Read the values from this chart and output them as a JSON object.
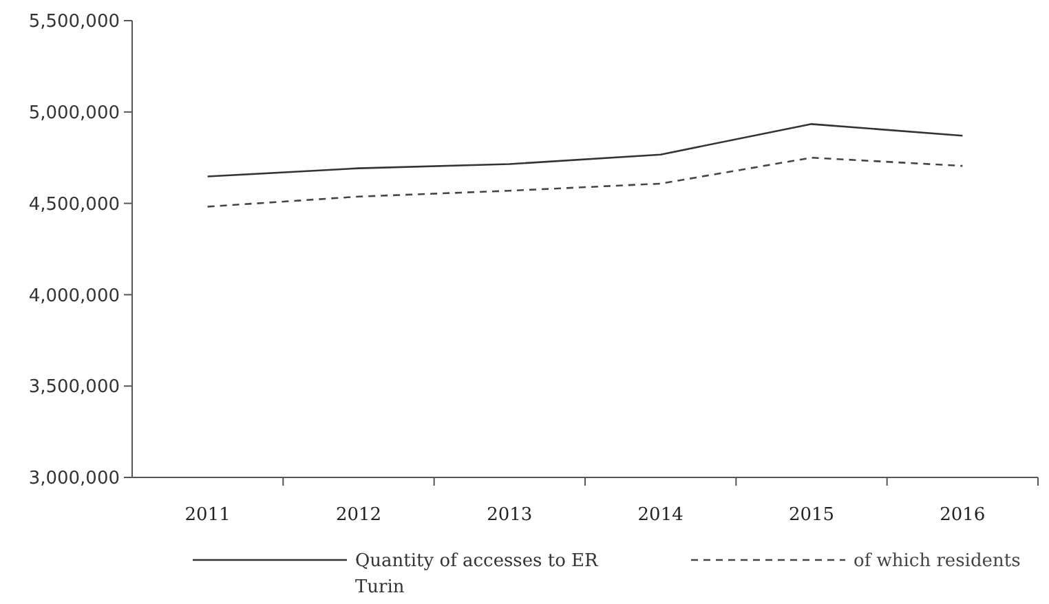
{
  "chart_data": {
    "type": "line",
    "categories": [
      "2011",
      "2012",
      "2013",
      "2014",
      "2015",
      "2016"
    ],
    "series": [
      {
        "name": "Quantity of accesses to ER Turin",
        "color": "#333333",
        "line_style": "solid",
        "values": [
          4647000,
          4692000,
          4715000,
          4767000,
          4934000,
          4870000
        ]
      },
      {
        "name": "of which residents",
        "color": "#444444",
        "line_style": "dashed",
        "values": [
          4482000,
          4537000,
          4569000,
          4608000,
          4750000,
          4705000
        ]
      }
    ],
    "ylim": [
      3000000,
      5500000
    ],
    "yticks": [
      {
        "value": 3000000,
        "label": "3,000,000"
      },
      {
        "value": 3500000,
        "label": "3,500,000"
      },
      {
        "value": 4000000,
        "label": "4,000,000"
      },
      {
        "value": 4500000,
        "label": "4,500,000"
      },
      {
        "value": 5000000,
        "label": "5,000,000"
      },
      {
        "value": 5500000,
        "label": "5,500,000"
      }
    ],
    "grid": false,
    "legend": "bottom",
    "marker": "none"
  }
}
